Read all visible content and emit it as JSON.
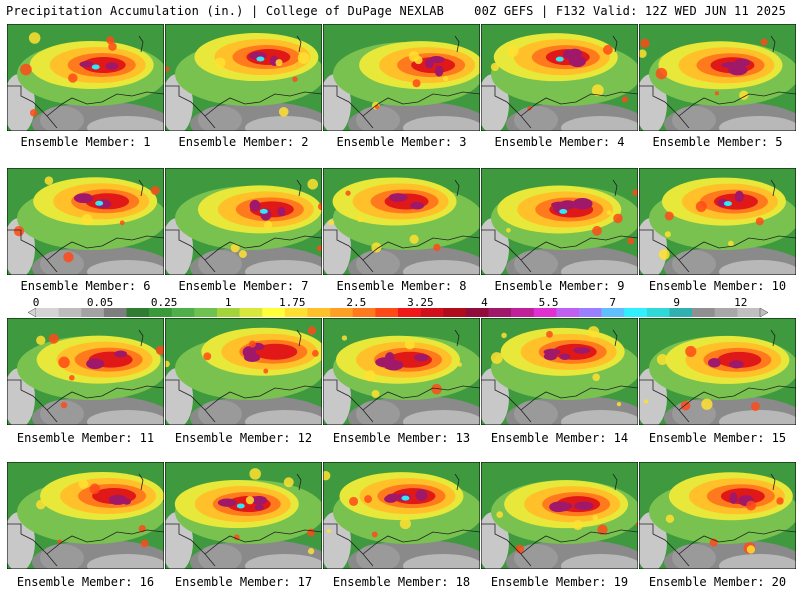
{
  "header": {
    "left": "Precipitation Accumulation (in.) | College of DuPage NEXLAB",
    "right": "00Z GEFS | F132 Valid: 12Z WED JUN 11 2025"
  },
  "panels": [
    {
      "label": "Ensemble Member: 1"
    },
    {
      "label": "Ensemble Member: 2"
    },
    {
      "label": "Ensemble Member: 3"
    },
    {
      "label": "Ensemble Member: 4"
    },
    {
      "label": "Ensemble Member: 5"
    },
    {
      "label": "Ensemble Member: 6"
    },
    {
      "label": "Ensemble Member: 7"
    },
    {
      "label": "Ensemble Member: 8"
    },
    {
      "label": "Ensemble Member: 9"
    },
    {
      "label": "Ensemble Member: 10"
    },
    {
      "label": "Ensemble Member: 11"
    },
    {
      "label": "Ensemble Member: 12"
    },
    {
      "label": "Ensemble Member: 13"
    },
    {
      "label": "Ensemble Member: 14"
    },
    {
      "label": "Ensemble Member: 15"
    },
    {
      "label": "Ensemble Member: 16"
    },
    {
      "label": "Ensemble Member: 17"
    },
    {
      "label": "Ensemble Member: 18"
    },
    {
      "label": "Ensemble Member: 19"
    },
    {
      "label": "Ensemble Member: 20"
    }
  ],
  "legend": {
    "ticks": [
      "0",
      "0.05",
      "0.25",
      "1",
      "1.75",
      "2.5",
      "3.25",
      "4",
      "5.5",
      "7",
      "9",
      "12"
    ],
    "colors": [
      "#d4d4d4",
      "#bdbdbd",
      "#a3a3a3",
      "#7e7e7e",
      "#2e7d32",
      "#3a9a3a",
      "#4fb04a",
      "#6fc24f",
      "#a3d43c",
      "#d8e83a",
      "#ffff3a",
      "#ffe030",
      "#ffc02a",
      "#ffa024",
      "#ff7a1c",
      "#ff4a18",
      "#f01818",
      "#d0101a",
      "#b00c1c",
      "#900c3a",
      "#a0186a",
      "#c0209a",
      "#e030d0",
      "#c060f0",
      "#9a80ff",
      "#60c0ff",
      "#30f0ff",
      "#30d8d8",
      "#30b0b0",
      "#909090",
      "#a8a8a8",
      "#c0c0c0"
    ]
  }
}
